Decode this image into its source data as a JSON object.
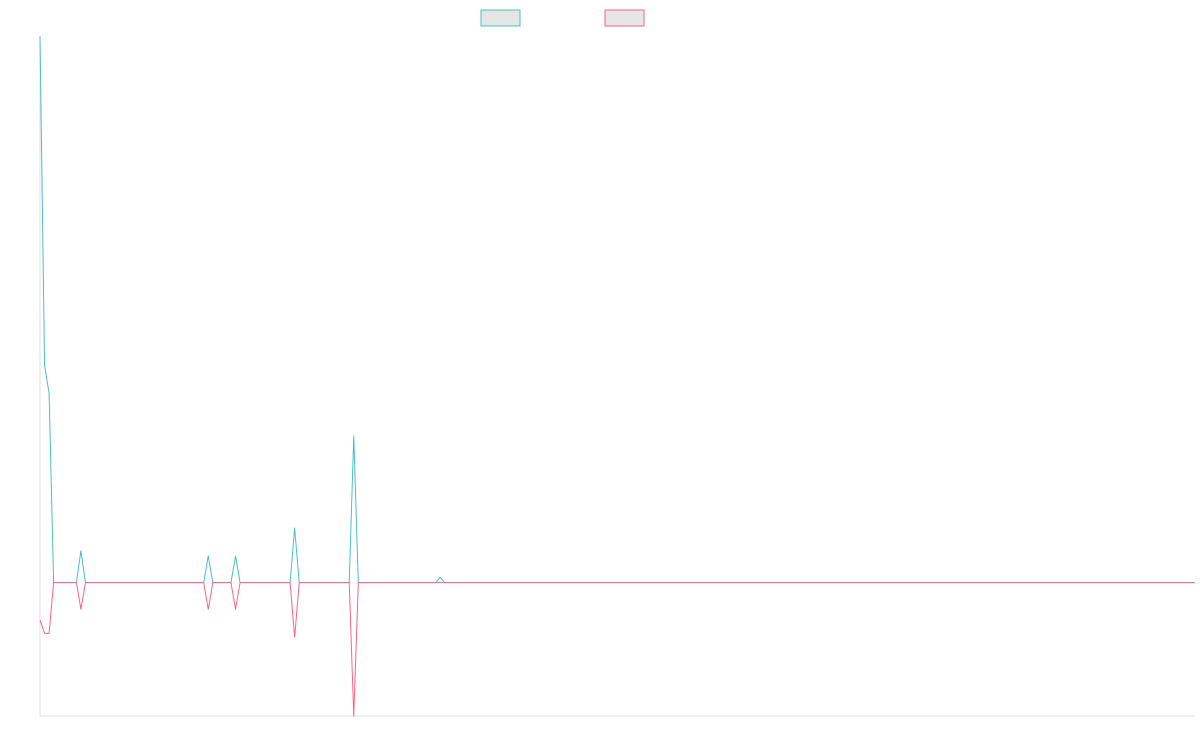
{
  "chart_data": {
    "type": "line",
    "title": "",
    "xlabel": "",
    "ylabel": "",
    "legend_position": "top-center",
    "grid": false,
    "x_count": 255,
    "xlim": [
      0,
      254
    ],
    "ylim": [
      -10,
      41
    ],
    "series": [
      {
        "color": "#4bc0c0",
        "legend_fill": "#e6e6e6",
        "spikes": [
          [
            0,
            41
          ],
          [
            1,
            16.3
          ],
          [
            2,
            14.2
          ],
          [
            3,
            0
          ],
          [
            8,
            0
          ],
          [
            9,
            2.4
          ],
          [
            10,
            0
          ],
          [
            36,
            0
          ],
          [
            37,
            2.0
          ],
          [
            38,
            0
          ],
          [
            42,
            0
          ],
          [
            43,
            2.0
          ],
          [
            44,
            0
          ],
          [
            55,
            0
          ],
          [
            56,
            4.1
          ],
          [
            57,
            0
          ],
          [
            68,
            0
          ],
          [
            69,
            11.0
          ],
          [
            70,
            0
          ],
          [
            87,
            0
          ],
          [
            88,
            0.4
          ],
          [
            89,
            0
          ],
          [
            254,
            0
          ]
        ]
      },
      {
        "color": "#ff6384",
        "legend_fill": "#e6e6e6",
        "spikes": [
          [
            0,
            -2.8
          ],
          [
            1,
            -3.8
          ],
          [
            2,
            -3.8
          ],
          [
            3,
            0
          ],
          [
            8,
            0
          ],
          [
            9,
            -2.0
          ],
          [
            10,
            0
          ],
          [
            36,
            0
          ],
          [
            37,
            -2.0
          ],
          [
            38,
            0
          ],
          [
            42,
            0
          ],
          [
            43,
            -2.0
          ],
          [
            44,
            0
          ],
          [
            55,
            0
          ],
          [
            56,
            -4.1
          ],
          [
            57,
            0
          ],
          [
            68,
            0
          ],
          [
            69,
            -10.0
          ],
          [
            70,
            0
          ],
          [
            254,
            0
          ]
        ]
      }
    ]
  }
}
